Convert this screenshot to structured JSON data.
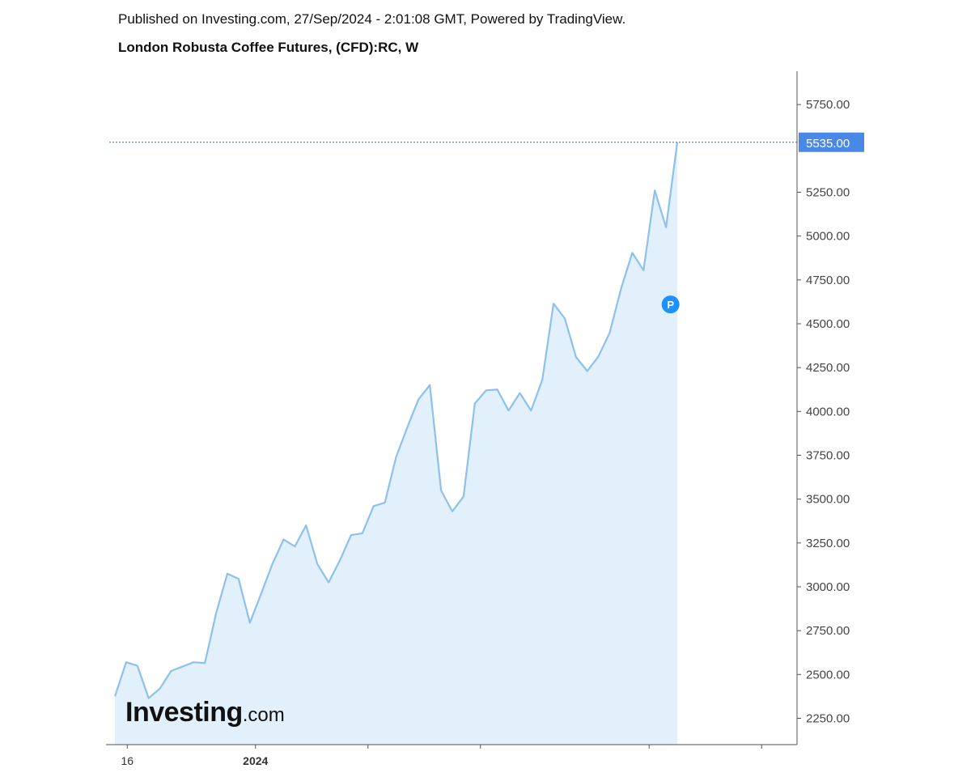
{
  "header": {
    "publish_line": "Published on Investing.com, 27/Sep/2024 - 2:01:08 GMT, Powered by TradingView.",
    "title": "London Robusta Coffee Futures, (CFD):RC, W"
  },
  "logo": {
    "main": "Investing",
    "suffix": ".com"
  },
  "colors": {
    "line": "#8ec0ee",
    "fill": "#e1f0fa",
    "last_price_bg": "#4a88e8",
    "last_price_text": "#ffffff",
    "marker": "#1e90ff",
    "axis": "#555555"
  },
  "chart_data": {
    "type": "area",
    "title": "London Robusta Coffee Futures, (CFD):RC, W",
    "xlabel": "",
    "ylabel": "",
    "ylim": [
      2100,
      5940
    ],
    "grid": false,
    "y_ticks": [
      "2250.00",
      "2500.00",
      "2750.00",
      "3000.00",
      "3250.00",
      "3500.00",
      "3750.00",
      "4000.00",
      "4250.00",
      "4500.00",
      "4750.00",
      "5000.00",
      "5250.00",
      "5750.00"
    ],
    "x_tick_labels": [
      {
        "label": "16",
        "index": 1.1,
        "bold": false
      },
      {
        "label": "2024",
        "index": 12.5,
        "bold": true
      },
      {
        "label": "",
        "index": 22.5,
        "bold": false
      },
      {
        "label": "",
        "index": 32.5,
        "bold": false
      },
      {
        "label": "",
        "index": 47.5,
        "bold": false
      },
      {
        "label": "",
        "index": 57.5,
        "bold": false
      }
    ],
    "last_price": {
      "value": 5535,
      "label": "5535.00"
    },
    "marker": {
      "label": "P",
      "index": 49.4,
      "value": 4610
    },
    "series": [
      {
        "values": [
          2375,
          2570,
          2550,
          2365,
          2420,
          2520,
          2545,
          2570,
          2565,
          2850,
          3075,
          3045,
          2795,
          2960,
          3130,
          3270,
          3230,
          3350,
          3130,
          3025,
          3150,
          3295,
          3305,
          3460,
          3480,
          3740,
          3910,
          4070,
          4150,
          3550,
          3430,
          3515,
          4045,
          4120,
          4125,
          4005,
          4105,
          4005,
          4180,
          4615,
          4530,
          4310,
          4230,
          4315,
          4450,
          4700,
          4905,
          4805,
          5260,
          5050,
          5535
        ]
      }
    ]
  }
}
